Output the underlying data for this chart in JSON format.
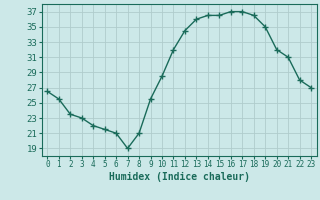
{
  "x": [
    0,
    1,
    2,
    3,
    4,
    5,
    6,
    7,
    8,
    9,
    10,
    11,
    12,
    13,
    14,
    15,
    16,
    17,
    18,
    19,
    20,
    21,
    22,
    23
  ],
  "y": [
    26.5,
    25.5,
    23.5,
    23.0,
    22.0,
    21.5,
    21.0,
    19.0,
    21.0,
    25.5,
    28.5,
    32.0,
    34.5,
    36.0,
    36.5,
    36.5,
    37.0,
    37.0,
    36.5,
    35.0,
    32.0,
    31.0,
    28.0,
    27.0
  ],
  "line_color": "#1a6b5a",
  "marker": "+",
  "marker_size": 4,
  "bg_color": "#cce8e8",
  "grid_color": "#b0cccc",
  "xlabel": "Humidex (Indice chaleur)",
  "ylim": [
    18,
    38
  ],
  "xlim": [
    -0.5,
    23.5
  ],
  "yticks": [
    19,
    21,
    23,
    25,
    27,
    29,
    31,
    33,
    35,
    37
  ],
  "xticks": [
    0,
    1,
    2,
    3,
    4,
    5,
    6,
    7,
    8,
    9,
    10,
    11,
    12,
    13,
    14,
    15,
    16,
    17,
    18,
    19,
    20,
    21,
    22,
    23
  ],
  "tick_color": "#1a6b5a",
  "spine_color": "#1a6b5a",
  "xlabel_fontsize": 7,
  "ytick_fontsize": 6.5,
  "xtick_fontsize": 5.5
}
